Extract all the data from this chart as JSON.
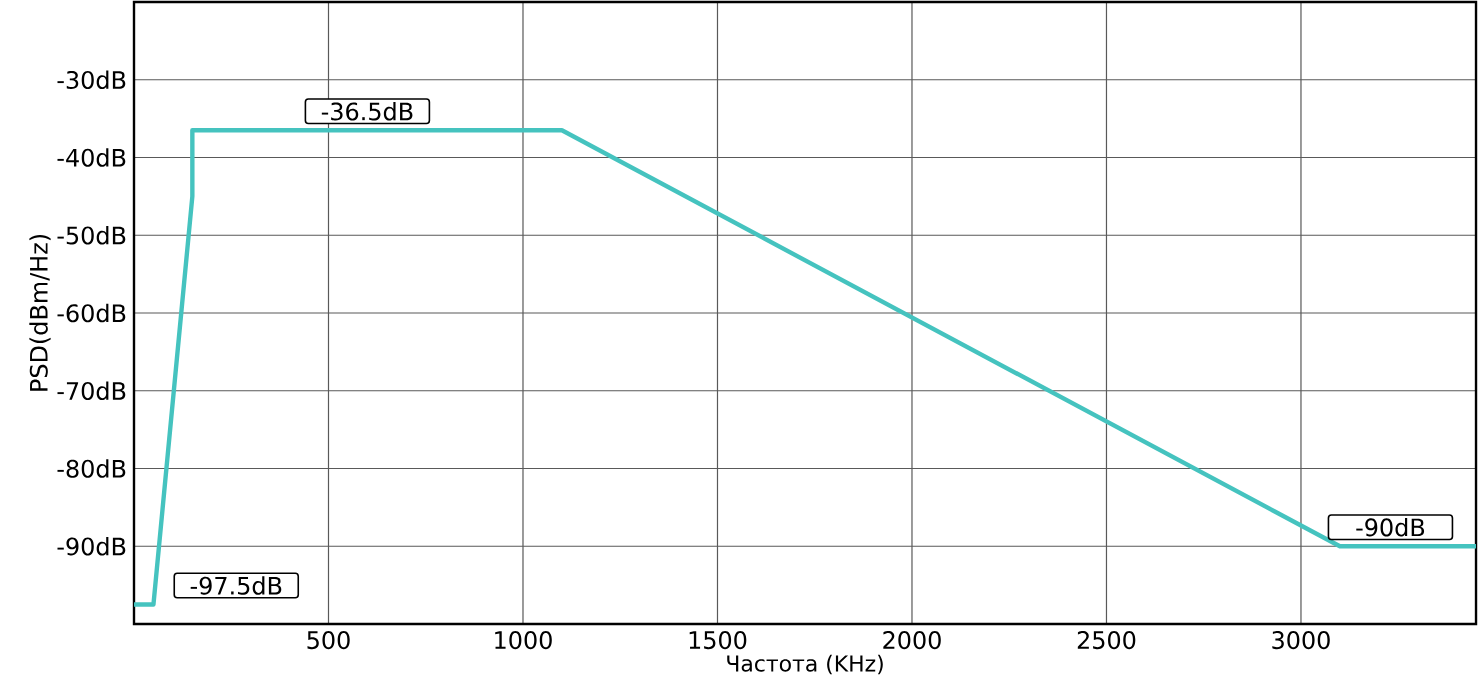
{
  "chart_data": {
    "type": "line",
    "xlabel": "Частота (KHz)",
    "ylabel": "PSD(dBm/Hz)",
    "x": [
      0,
      50,
      150,
      150,
      1100,
      3100,
      3450
    ],
    "series": [
      {
        "color": "#45c3bf",
        "values": [
          -97.5,
          -97.5,
          -45,
          -36.5,
          -36.5,
          -90,
          -90
        ]
      }
    ],
    "xlim": [
      0,
      3450
    ],
    "ylim": [
      -100,
      -20
    ],
    "xticks": [
      500,
      1000,
      1500,
      2000,
      2500,
      3000
    ],
    "yticks": [
      {
        "value": -90,
        "label": "-90dB"
      },
      {
        "value": -80,
        "label": "-80dB"
      },
      {
        "value": -70,
        "label": "-70dB"
      },
      {
        "value": -60,
        "label": "-60dB"
      },
      {
        "value": -50,
        "label": "-50dB"
      },
      {
        "value": -40,
        "label": "-40dB"
      },
      {
        "value": -30,
        "label": "-30dB"
      }
    ],
    "grid": true,
    "line_style": "solid",
    "annotations": [
      {
        "text": "-36.5dB",
        "x": 600,
        "y": -36.5
      },
      {
        "text": "-97.5dB",
        "x": 50,
        "y": -97.5
      },
      {
        "text": "-90dB",
        "x": 3230,
        "y": -90
      }
    ]
  }
}
